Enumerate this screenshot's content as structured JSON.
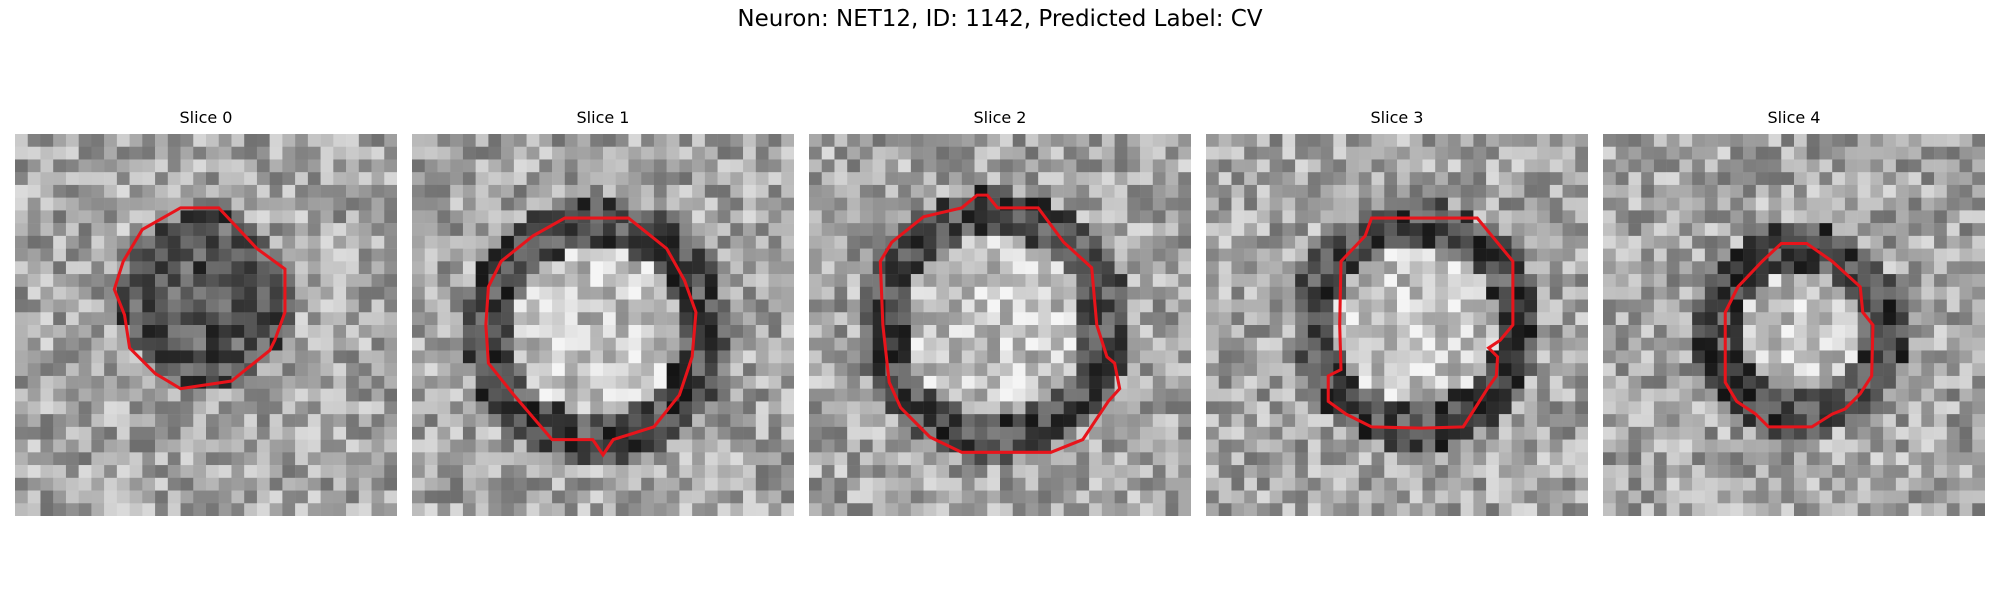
{
  "figure": {
    "title": "Neuron: NET12, ID: 1142, Predicted Label: CV"
  },
  "panels": [
    {
      "title": "Slice 0",
      "contour_color": "#e8141b"
    },
    {
      "title": "Slice 1",
      "contour_color": "#e8141b"
    },
    {
      "title": "Slice 2",
      "contour_color": "#e8141b"
    },
    {
      "title": "Slice 3",
      "contour_color": "#e8141b"
    },
    {
      "title": "Slice 4",
      "contour_color": "#e8141b"
    }
  ]
}
